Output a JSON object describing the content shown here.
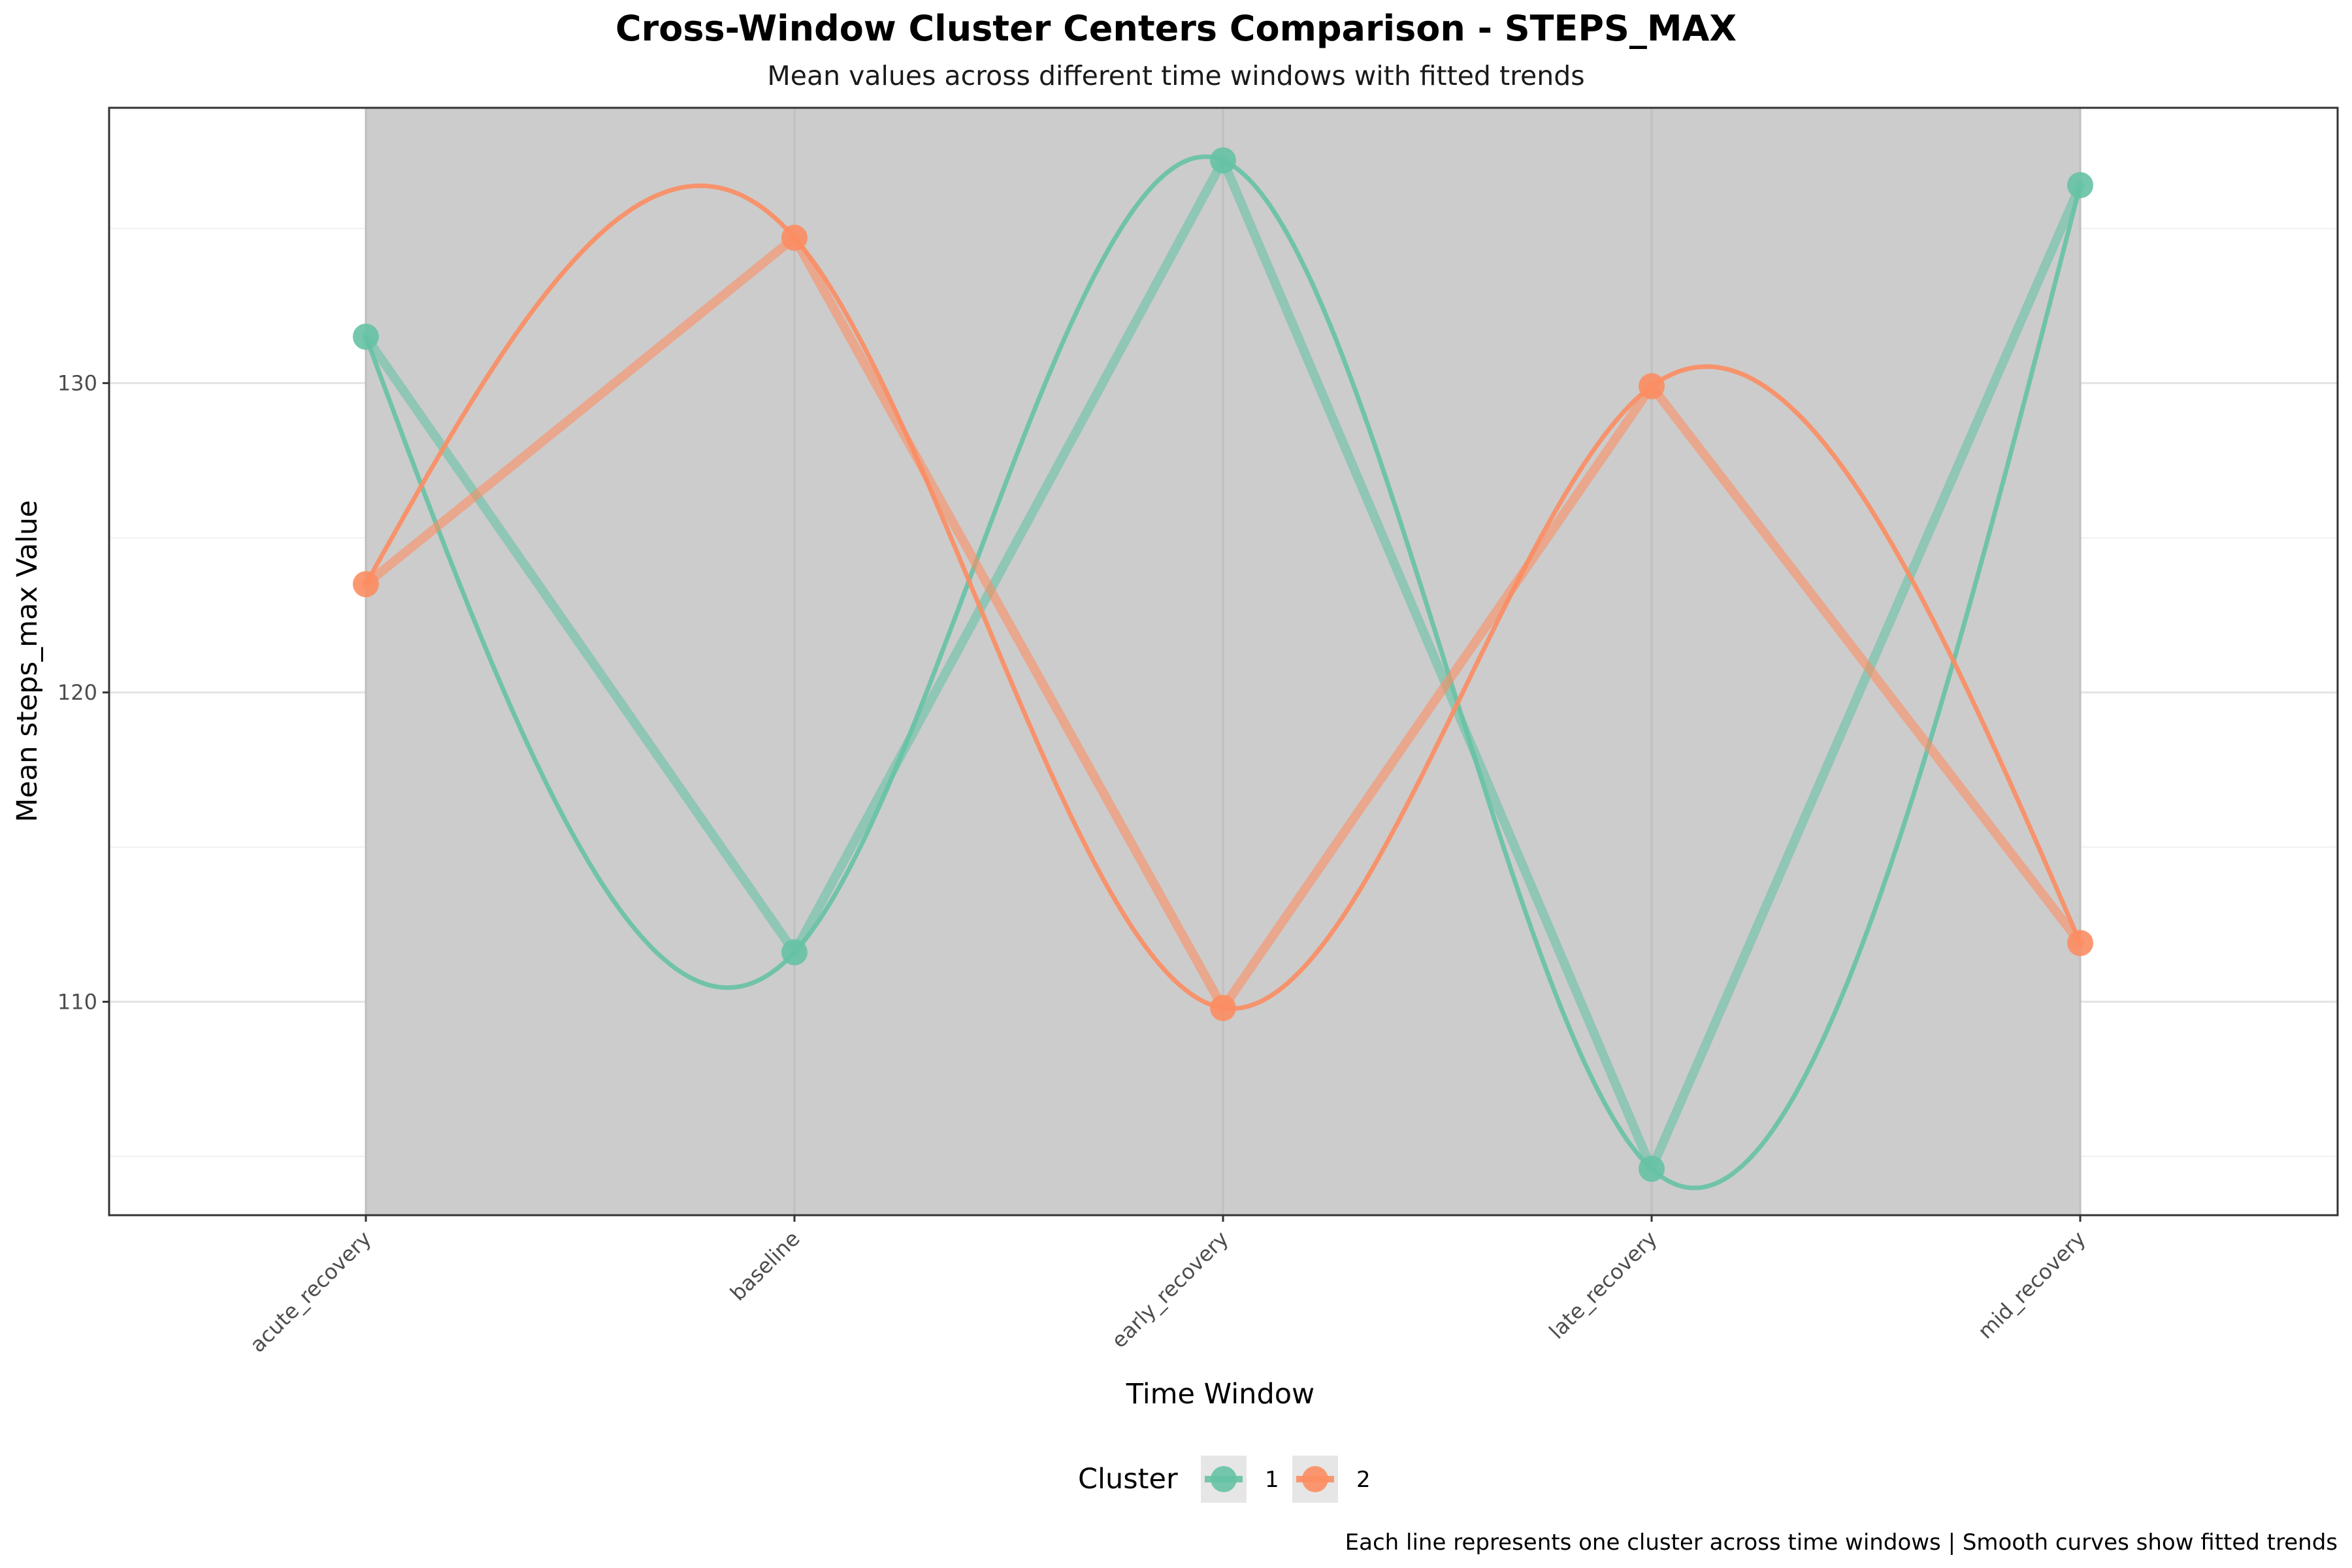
{
  "chart_data": {
    "type": "line",
    "title": "Cross-Window Cluster Centers Comparison - STEPS_MAX",
    "subtitle": "Mean values across different time windows with fitted trends",
    "xlabel": "Time Window",
    "ylabel": "Mean steps_max Value",
    "caption": "Each line represents one cluster across time windows | Smooth curves show fitted trends",
    "categories": [
      "acute_recovery",
      "baseline",
      "early_recovery",
      "late_recovery",
      "mid_recovery"
    ],
    "y_ticks": [
      110,
      120,
      130
    ],
    "ylim": [
      103.1,
      138.9
    ],
    "grid": true,
    "shaded_band": "acute_recovery to mid_recovery",
    "legend": {
      "title": "Cluster",
      "position": "bottom",
      "entries": [
        "1",
        "2"
      ]
    },
    "series": [
      {
        "name": "1",
        "color": "#66c2a5",
        "values": [
          131.5,
          111.6,
          137.2,
          104.6,
          136.4
        ]
      },
      {
        "name": "2",
        "color": "#fc8d62",
        "values": [
          123.5,
          134.7,
          109.8,
          129.9,
          111.9
        ]
      }
    ]
  }
}
